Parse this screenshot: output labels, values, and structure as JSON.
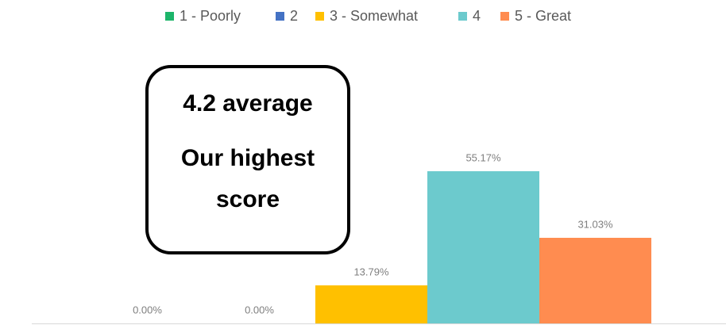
{
  "chart_data": {
    "type": "bar",
    "series": [
      {
        "name": "1 - Poorly",
        "color": "#1db56a",
        "values": [
          0
        ],
        "value_labels": [
          "0.00%"
        ]
      },
      {
        "name": "2",
        "color": "#4472c4",
        "values": [
          0
        ],
        "value_labels": [
          "0.00%"
        ]
      },
      {
        "name": "3 - Somewhat",
        "color": "#ffc000",
        "values": [
          13.79
        ],
        "value_labels": [
          "13.79%"
        ]
      },
      {
        "name": "4",
        "color": "#6ccacd",
        "values": [
          55.17
        ],
        "value_labels": [
          "55.17%"
        ]
      },
      {
        "name": "5 - Great",
        "color": "#ff8c50",
        "values": [
          31.03
        ],
        "value_labels": [
          "31.03%"
        ]
      }
    ],
    "annotations": [
      "4.2 average",
      "Our highest score"
    ],
    "legend": "top"
  }
}
